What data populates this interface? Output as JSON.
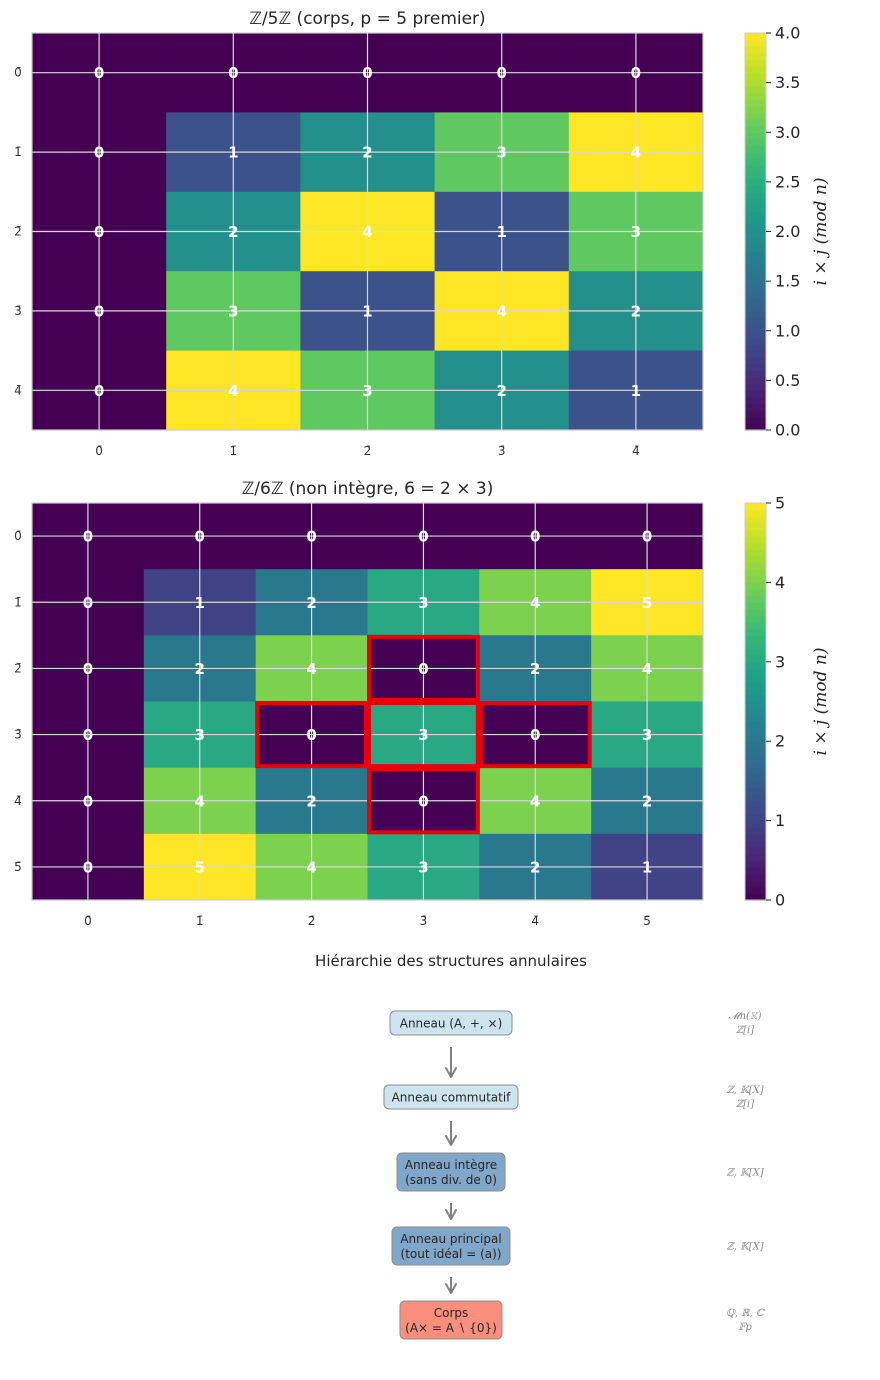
{
  "chart_data": [
    {
      "type": "heatmap",
      "title": "ℤ/5ℤ (corps, p = 5 premier)",
      "x_tick_labels": [
        "0̄",
        "1̄",
        "2̄",
        "3̄",
        "4̄"
      ],
      "y_tick_labels": [
        "0̄",
        "1̄",
        "2̄",
        "3̄",
        "4̄"
      ],
      "values": [
        [
          0,
          0,
          0,
          0,
          0
        ],
        [
          0,
          1,
          2,
          3,
          4
        ],
        [
          0,
          2,
          4,
          1,
          3
        ],
        [
          0,
          3,
          1,
          4,
          2
        ],
        [
          0,
          4,
          3,
          2,
          1
        ]
      ],
      "colormap": "viridis",
      "vmin": 0,
      "vmax": 4,
      "colorbar_label": "i × j (mod n)",
      "colorbar_ticks": [
        "0.0",
        "0.5",
        "1.0",
        "1.5",
        "2.0",
        "2.5",
        "3.0",
        "3.5",
        "4.0"
      ],
      "grid": true,
      "highlighted_cells": []
    },
    {
      "type": "heatmap",
      "title": "ℤ/6ℤ (non intègre, 6 = 2 × 3)",
      "x_tick_labels": [
        "0̄",
        "1̄",
        "2̄",
        "3̄",
        "4̄",
        "5̄"
      ],
      "y_tick_labels": [
        "0̄",
        "1̄",
        "2̄",
        "3̄",
        "4̄",
        "5̄"
      ],
      "values": [
        [
          0,
          0,
          0,
          0,
          0,
          0
        ],
        [
          0,
          1,
          2,
          3,
          4,
          5
        ],
        [
          0,
          2,
          4,
          0,
          2,
          4
        ],
        [
          0,
          3,
          0,
          3,
          0,
          3
        ],
        [
          0,
          4,
          2,
          0,
          4,
          2
        ],
        [
          0,
          5,
          4,
          3,
          2,
          1
        ]
      ],
      "colormap": "viridis",
      "vmin": 0,
      "vmax": 5,
      "colorbar_label": "i × j (mod n)",
      "colorbar_ticks": [
        "0",
        "1",
        "2",
        "3",
        "4",
        "5"
      ],
      "grid": true,
      "highlighted_cells": [
        [
          2,
          3
        ],
        [
          3,
          2
        ],
        [
          3,
          3
        ],
        [
          3,
          4
        ],
        [
          4,
          3
        ]
      ],
      "highlight_color": "#e8000b"
    }
  ],
  "hierarchy": {
    "title": "Hiérarchie des structures annulaires",
    "nodes": [
      {
        "lines": [
          "Anneau (A, +, ×)"
        ],
        "fill": "#cde4ee",
        "examples": [
          "𝓜n(𝕂)",
          "ℤ[i]"
        ]
      },
      {
        "lines": [
          "Anneau commutatif"
        ],
        "fill": "#cde4ee",
        "examples": [
          "ℤ, 𝕂[X]",
          "ℤ[i]"
        ]
      },
      {
        "lines": [
          "Anneau intègre",
          "(sans div. de 0)"
        ],
        "fill": "#80a6c9",
        "examples": [
          "ℤ, 𝕂[X]"
        ]
      },
      {
        "lines": [
          "Anneau principal",
          "(tout idéal = (a))"
        ],
        "fill": "#80a6c9",
        "examples": [
          "ℤ, 𝕂[X]"
        ]
      },
      {
        "lines": [
          "Corps",
          "(A× = A ∖ {0})"
        ],
        "fill": "#fa8f7e",
        "examples": [
          "ℚ, ℝ, ℂ",
          "𝔽p"
        ]
      }
    ]
  }
}
